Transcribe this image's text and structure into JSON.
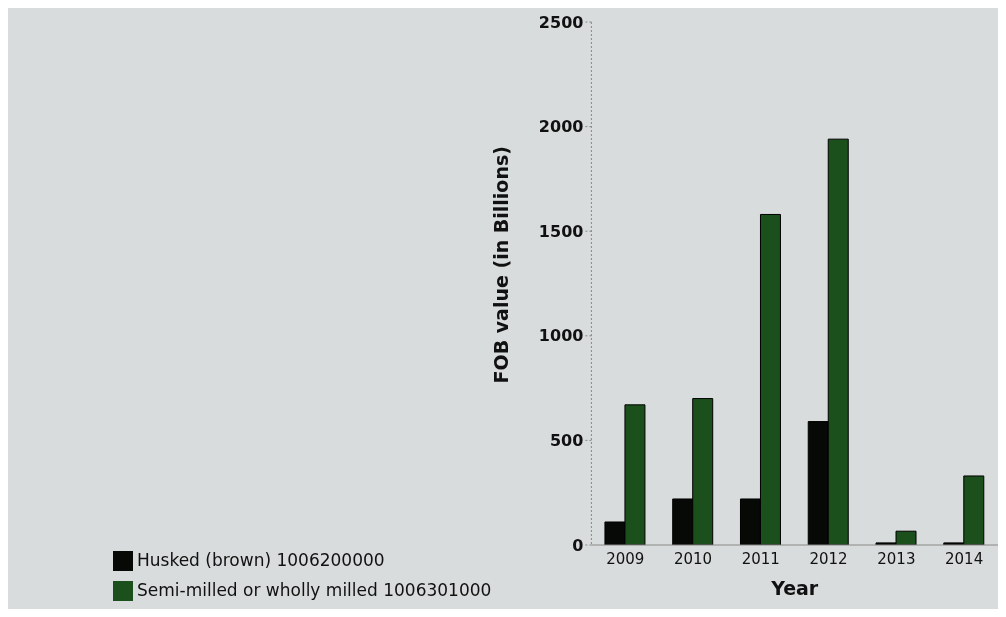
{
  "chart_data": {
    "type": "bar",
    "xlabel": "Year",
    "ylabel": "FOB value (in Billions)",
    "categories": [
      "2009",
      "2010",
      "2011",
      "2012",
      "2013",
      "2014"
    ],
    "series": [
      {
        "name": "Husked (brown) 1006200000",
        "color": "#060906",
        "values": [
          110,
          220,
          220,
          590,
          10,
          10
        ]
      },
      {
        "name": "Semi-milled or wholly milled 1006301000",
        "color": "#1b4f1b",
        "values": [
          670,
          700,
          1580,
          1940,
          66,
          330
        ]
      }
    ],
    "ylim": [
      0,
      2500
    ],
    "yticks": [
      0,
      500,
      1000,
      1500,
      2000,
      2500
    ],
    "grid": false,
    "legend": "bottom left"
  }
}
